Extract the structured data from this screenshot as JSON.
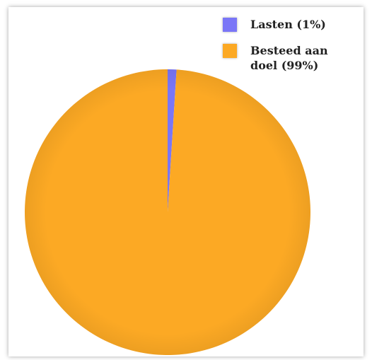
{
  "chart_data": {
    "type": "pie",
    "title": "",
    "slices": [
      {
        "label": "Lasten (1%)",
        "value": 1,
        "color": "#7a76f7"
      },
      {
        "label": "Besteed aan doel (99%)",
        "value": 99,
        "color": "#fca924"
      }
    ],
    "legend_position": "top-right"
  }
}
